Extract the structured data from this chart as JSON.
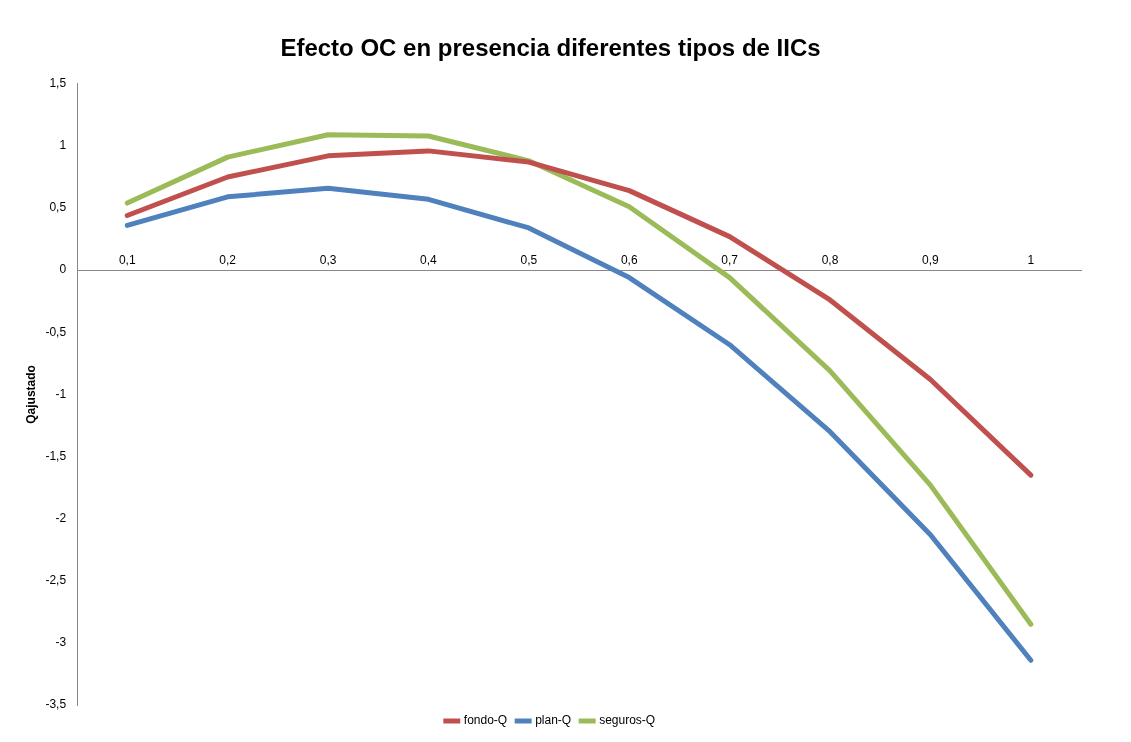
{
  "chart_data": {
    "type": "line",
    "title": "Efecto OC en presencia diferentes tipos de IICs",
    "ylabel": "Qajustado",
    "categories": [
      "0,1",
      "0,2",
      "0,3",
      "0,4",
      "0,5",
      "0,6",
      "0,7",
      "0,8",
      "0,9",
      "1"
    ],
    "series": [
      {
        "name": "fondo-Q",
        "color": "#c0504d",
        "values": [
          0.44,
          0.75,
          0.92,
          0.96,
          0.87,
          0.64,
          0.27,
          -0.24,
          -0.88,
          -1.65
        ]
      },
      {
        "name": "plan-Q",
        "color": "#4f81bd",
        "values": [
          0.36,
          0.59,
          0.66,
          0.57,
          0.34,
          -0.06,
          -0.6,
          -1.3,
          -2.13,
          -3.14
        ]
      },
      {
        "name": "seguros-Q",
        "color": "#9bbb59",
        "values": [
          0.54,
          0.91,
          1.09,
          1.08,
          0.88,
          0.51,
          -0.06,
          -0.81,
          -1.73,
          -2.85
        ]
      }
    ],
    "ylim": [
      -3.5,
      1.5
    ],
    "yticks": [
      {
        "value": -3.5,
        "label": "-3,5"
      },
      -3,
      {
        "value": -2.5,
        "label": "-2,5"
      },
      -2,
      {
        "value": -1.5,
        "label": "-1,5"
      },
      -1,
      {
        "value": -0.5,
        "label": "-0,5"
      },
      0,
      {
        "value": 0.5,
        "label": "0,5"
      },
      1,
      {
        "value": 1.5,
        "label": "1,5"
      }
    ],
    "grid": false,
    "legend": "bottom",
    "marker": "none",
    "line_style": "solid"
  }
}
